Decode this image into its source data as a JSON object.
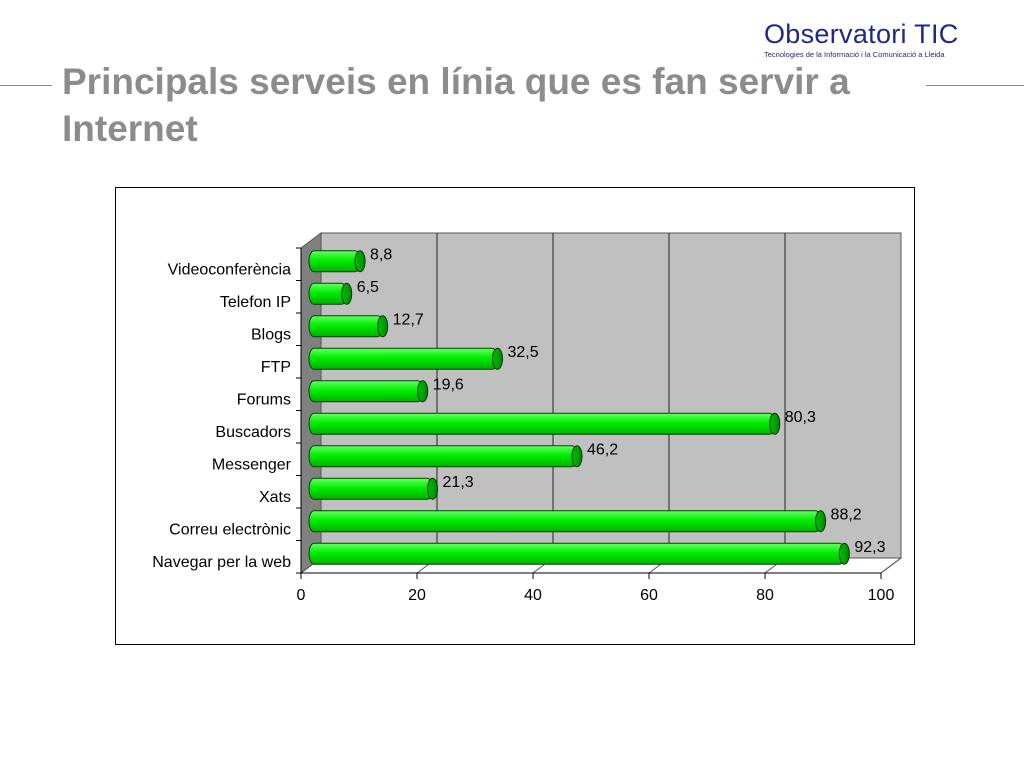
{
  "header": {
    "title": "Principals serveis en línia que es fan servir a Internet",
    "logo": {
      "name": "Observatori TIC",
      "tagline": "Tecnologies de la Informació i la Comunicació a Lleida"
    }
  },
  "colors": {
    "title": "#8c8c8c",
    "logo": "#1b2a8a",
    "bar": "#00ee00",
    "bar_dark": "#008800",
    "plot_back": "#c0c0c0",
    "plot_side": "#808080"
  },
  "chart_data": {
    "type": "bar",
    "orientation": "horizontal",
    "categories": [
      "Videoconferència",
      "Telefon IP",
      "Blogs",
      "FTP",
      "Forums",
      "Buscadors",
      "Messenger",
      "Xats",
      "Correu electrònic",
      "Navegar per la web"
    ],
    "values": [
      8.8,
      6.5,
      12.7,
      32.5,
      19.6,
      80.3,
      46.2,
      21.3,
      88.2,
      92.3
    ],
    "value_labels": [
      "8,8",
      "6,5",
      "12,7",
      "32,5",
      "19,6",
      "80,3",
      "46,2",
      "21,3",
      "88,2",
      "92,3"
    ],
    "xlim": [
      0,
      100
    ],
    "xticks": [
      0,
      20,
      40,
      60,
      80,
      100
    ],
    "grid": true,
    "style": "3d-cylinder"
  }
}
